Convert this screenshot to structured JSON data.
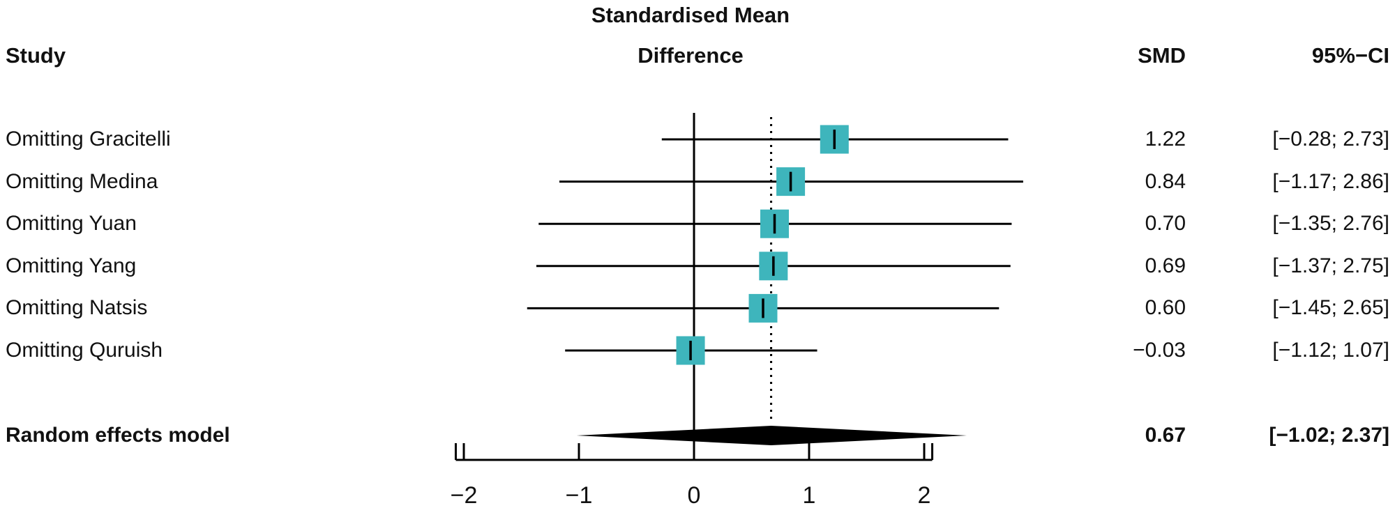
{
  "chart_data": {
    "type": "forest",
    "title_line1": "Standardised Mean",
    "title_line2": "Difference",
    "header": {
      "study": "Study",
      "effect_line1": "Standardised Mean",
      "effect_line2": "Difference",
      "smd": "SMD",
      "ci": "95%−CI"
    },
    "studies": [
      {
        "label": "Omitting Gracitelli",
        "smd": 1.22,
        "lower": -0.28,
        "upper": 2.73,
        "smd_text": "1.22",
        "ci_text": "[−0.28; 2.73]"
      },
      {
        "label": "Omitting Medina",
        "smd": 0.84,
        "lower": -1.17,
        "upper": 2.86,
        "smd_text": "0.84",
        "ci_text": "[−1.17; 2.86]"
      },
      {
        "label": "Omitting Yuan",
        "smd": 0.7,
        "lower": -1.35,
        "upper": 2.76,
        "smd_text": "0.70",
        "ci_text": "[−1.35; 2.76]"
      },
      {
        "label": "Omitting Yang",
        "smd": 0.69,
        "lower": -1.37,
        "upper": 2.75,
        "smd_text": "0.69",
        "ci_text": "[−1.37; 2.75]"
      },
      {
        "label": "Omitting Natsis",
        "smd": 0.6,
        "lower": -1.45,
        "upper": 2.65,
        "smd_text": "0.60",
        "ci_text": "[−1.45; 2.65]"
      },
      {
        "label": "Omitting Quruish",
        "smd": -0.03,
        "lower": -1.12,
        "upper": 1.07,
        "smd_text": "−0.03",
        "ci_text": "[−1.12; 1.07]"
      }
    ],
    "summary": {
      "label": "Random effects model",
      "smd": 0.67,
      "lower": -1.02,
      "upper": 2.37,
      "smd_text": "0.67",
      "ci_text": "[−1.02; 2.37]"
    },
    "ref_line": 0,
    "dotted_line": 0.67,
    "axis": {
      "xlim": [
        -2.07,
        2.07
      ],
      "ticks": [
        -2,
        -1,
        0,
        1,
        2
      ],
      "tick_labels": [
        "−2",
        "−1",
        "0",
        "1",
        "2"
      ]
    },
    "colors": {
      "square": "#3eb5bc",
      "line": "#000000"
    }
  }
}
